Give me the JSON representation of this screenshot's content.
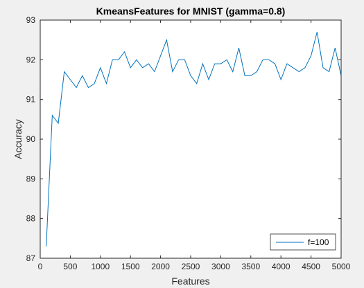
{
  "chart_data": {
    "type": "line",
    "title": "KmeansFeatures for MNIST (gamma=0.8)",
    "xlabel": "Features",
    "ylabel": "Accuracy",
    "xlim": [
      0,
      5000
    ],
    "ylim": [
      87,
      93
    ],
    "xticks": [
      0,
      500,
      1000,
      1500,
      2000,
      2500,
      3000,
      3500,
      4000,
      4500,
      5000
    ],
    "yticks": [
      87,
      88,
      89,
      90,
      91,
      92,
      93
    ],
    "grid": false,
    "legend_position": "bottom-right",
    "series": [
      {
        "name": "f=100",
        "color": "#0072bd",
        "x": [
          100,
          200,
          300,
          400,
          500,
          600,
          700,
          800,
          900,
          1000,
          1100,
          1200,
          1300,
          1400,
          1500,
          1600,
          1700,
          1800,
          1900,
          2000,
          2100,
          2200,
          2300,
          2400,
          2500,
          2600,
          2700,
          2800,
          2900,
          3000,
          3100,
          3200,
          3300,
          3400,
          3500,
          3600,
          3700,
          3800,
          3900,
          4000,
          4100,
          4200,
          4300,
          4400,
          4500,
          4600,
          4700,
          4800,
          4900,
          5000
        ],
        "y": [
          87.3,
          90.6,
          90.4,
          91.7,
          91.5,
          91.3,
          91.6,
          91.3,
          91.4,
          91.8,
          91.4,
          92.0,
          92.0,
          92.2,
          91.8,
          92.0,
          91.8,
          91.9,
          91.7,
          92.1,
          92.5,
          91.7,
          92.0,
          92.0,
          91.6,
          91.4,
          91.9,
          91.5,
          91.9,
          91.9,
          92.0,
          91.7,
          92.3,
          91.6,
          91.6,
          91.7,
          92.0,
          92.0,
          91.9,
          91.5,
          91.9,
          91.8,
          91.7,
          91.8,
          92.1,
          92.7,
          91.8,
          91.7,
          92.3,
          91.6
        ]
      }
    ]
  }
}
